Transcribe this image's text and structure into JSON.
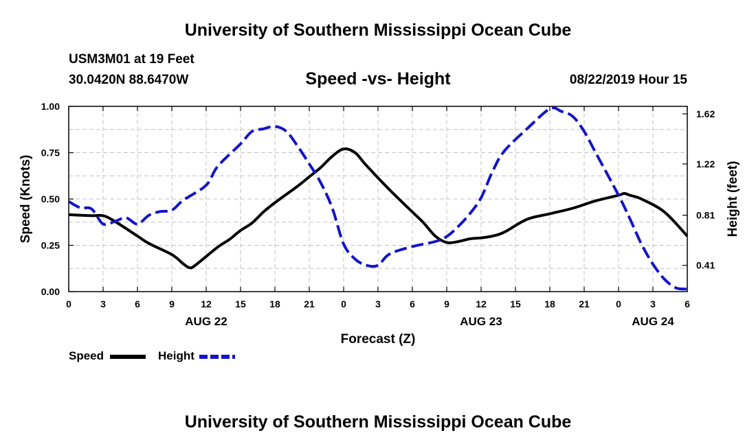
{
  "header": {
    "title": "University of Southern Mississippi Ocean Cube",
    "station": "USM3M01 at 19 Feet",
    "location": "30.0420N 88.6470W",
    "subtitle": "Speed -vs- Height",
    "datetime": "08/22/2019 Hour 15"
  },
  "footer": {
    "title": "University of Southern Mississippi Ocean Cube"
  },
  "legend": {
    "speed_label": "Speed",
    "height_label": "Height"
  },
  "colors": {
    "speed": "#000000",
    "height": "#1414c8",
    "grid": "#c0c0c0"
  },
  "chart_data": {
    "type": "line",
    "title": "Speed -vs- Height",
    "xlabel": "Forecast (Z)",
    "ylabel": "Speed (Knots)",
    "y2label": "Height (feet)",
    "xlim": [
      0,
      54
    ],
    "ylim": [
      0,
      1.0
    ],
    "y2lim": [
      0.2,
      1.68
    ],
    "x_ticks": [
      0,
      3,
      6,
      9,
      12,
      15,
      18,
      21,
      24,
      27,
      30,
      33,
      36,
      39,
      42,
      45,
      48,
      51,
      54
    ],
    "x_tick_labels": [
      "0",
      "3",
      "6",
      "9",
      "12",
      "15",
      "18",
      "21",
      "0",
      "3",
      "6",
      "9",
      "12",
      "15",
      "18",
      "21",
      "0",
      "3",
      "6"
    ],
    "date_labels": [
      {
        "x": 12,
        "label": "AUG 22"
      },
      {
        "x": 36,
        "label": "AUG 23"
      },
      {
        "x": 51,
        "label": "AUG 24"
      }
    ],
    "y_ticks": [
      0.0,
      0.25,
      0.5,
      0.75,
      1.0
    ],
    "y_tick_labels": [
      "0.00",
      "0.25",
      "0.50",
      "0.75",
      "1.00"
    ],
    "y2_ticks": [
      0.41,
      0.81,
      1.22,
      1.62
    ],
    "y2_tick_labels": [
      "0.41",
      "0.81",
      "1.22",
      "1.62"
    ],
    "grid": true,
    "series": [
      {
        "name": "Speed",
        "axis": "left",
        "style": "solid",
        "x": [
          0,
          2,
          3,
          4,
          6,
          7,
          9,
          10,
          10.5,
          11,
          13,
          14,
          15,
          16,
          17,
          18,
          20,
          21,
          22,
          23,
          24,
          25,
          26,
          28,
          30,
          31,
          32,
          33,
          34,
          35,
          36,
          37,
          38,
          40,
          42,
          44,
          46,
          48,
          48.5,
          49,
          50,
          52,
          54
        ],
        "values": [
          0.415,
          0.41,
          0.41,
          0.38,
          0.3,
          0.26,
          0.2,
          0.15,
          0.13,
          0.14,
          0.24,
          0.28,
          0.33,
          0.37,
          0.43,
          0.48,
          0.57,
          0.62,
          0.67,
          0.73,
          0.77,
          0.75,
          0.68,
          0.55,
          0.43,
          0.37,
          0.3,
          0.265,
          0.27,
          0.285,
          0.29,
          0.3,
          0.32,
          0.39,
          0.42,
          0.45,
          0.49,
          0.52,
          0.53,
          0.52,
          0.5,
          0.43,
          0.3
        ]
      },
      {
        "name": "Height",
        "axis": "right",
        "style": "dashed",
        "x": [
          0,
          1,
          2,
          3,
          4,
          5,
          6,
          7,
          8,
          9,
          10,
          12,
          13,
          15,
          16,
          17,
          18,
          19,
          20,
          21,
          22,
          23,
          24,
          25,
          26,
          27,
          28,
          30,
          32,
          33,
          34,
          35,
          36,
          37,
          38,
          40,
          42,
          43,
          44,
          45,
          46,
          48,
          49,
          50,
          51,
          52,
          53,
          54
        ],
        "values": [
          0.92,
          0.87,
          0.86,
          0.74,
          0.76,
          0.79,
          0.74,
          0.81,
          0.84,
          0.85,
          0.93,
          1.05,
          1.2,
          1.38,
          1.48,
          1.5,
          1.52,
          1.48,
          1.36,
          1.22,
          1.07,
          0.87,
          0.58,
          0.46,
          0.41,
          0.41,
          0.5,
          0.56,
          0.6,
          0.64,
          0.72,
          0.82,
          0.95,
          1.16,
          1.32,
          1.5,
          1.66,
          1.64,
          1.6,
          1.48,
          1.31,
          0.97,
          0.78,
          0.58,
          0.42,
          0.3,
          0.23,
          0.22
        ]
      }
    ]
  }
}
